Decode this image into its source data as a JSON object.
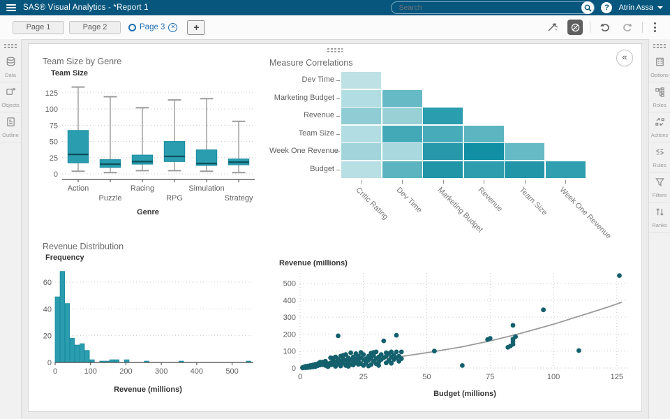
{
  "app": {
    "title": "SAS® Visual Analytics - *Report 1",
    "search_placeholder": "Search",
    "user_name": "Atrin Assa",
    "collapse_glyph": "«"
  },
  "tabs": {
    "pages": [
      {
        "label": "Page 1",
        "active": false
      },
      {
        "label": "Page 2",
        "active": false
      },
      {
        "label": "Page 3",
        "active": true
      }
    ],
    "add_label": "+"
  },
  "left_rail": {
    "items": [
      {
        "label": "Data",
        "icon": "data-icon"
      },
      {
        "label": "Objects",
        "icon": "objects-icon"
      },
      {
        "label": "Outline",
        "icon": "outline-icon"
      }
    ]
  },
  "right_rail": {
    "items": [
      {
        "label": "Options",
        "icon": "options-icon"
      },
      {
        "label": "Roles",
        "icon": "roles-icon"
      },
      {
        "label": "Actions",
        "icon": "actions-icon"
      },
      {
        "label": "Rules",
        "icon": "rules-icon"
      },
      {
        "label": "Filters",
        "icon": "filters-icon"
      },
      {
        "label": "Ranks",
        "icon": "ranks-icon"
      }
    ]
  },
  "colors": {
    "header_bg": "#07567e",
    "accent_blue": "#1f6fb2",
    "teal": "#2a9daf",
    "teal_border": "#1a8c9f",
    "median": "#0d4f5c",
    "scatter_dot": "#14606d",
    "trend_gray": "#9a9a9a",
    "whisker_gray": "#9b9b9b",
    "grid_dotted": "#c9c9c9"
  },
  "chart_data": [
    {
      "id": "boxplot",
      "type": "boxplot",
      "title": "Team Size by Genre",
      "ylabel": "Team Size",
      "xlabel": "Genre",
      "y_ticks": [
        0,
        25,
        50,
        75,
        100,
        125
      ],
      "ylim": [
        0,
        140
      ],
      "categories": [
        "Action",
        "Puzzle",
        "Racing",
        "RPG",
        "Simulation",
        "Strategy"
      ],
      "boxes": [
        {
          "low": 4,
          "q1": 17,
          "median": 30,
          "q3": 67,
          "high": 134
        },
        {
          "low": 2,
          "q1": 10,
          "median": 15,
          "q3": 22,
          "high": 119
        },
        {
          "low": 5,
          "q1": 15,
          "median": 19,
          "q3": 29,
          "high": 102
        },
        {
          "low": 5,
          "q1": 19,
          "median": 27,
          "q3": 50,
          "high": 114
        },
        {
          "low": 4,
          "q1": 13,
          "median": 16,
          "q3": 37,
          "high": 116
        },
        {
          "low": 2,
          "q1": 14,
          "median": 18,
          "q3": 23,
          "high": 81
        }
      ]
    },
    {
      "id": "heatmap",
      "type": "heatmap",
      "title": "Measure Correlations",
      "rows": [
        "Dev Time",
        "Marketing Budget",
        "Revenue",
        "Team Size",
        "Week One Revenue",
        "Budget"
      ],
      "cols": [
        "Critic Rating",
        "Dev Time",
        "Marketing Budget",
        "Revenue",
        "Team Size",
        "Week One Revenue"
      ],
      "cell_colors": [
        [
          "#bde1e5"
        ],
        [
          "#b2dde2",
          "#65bac5"
        ],
        [
          "#90ccd4",
          "#98d0d6",
          "#2a9dae"
        ],
        [
          "#b2dde2",
          "#44a9b7",
          "#48abb9",
          "#5cb5c1"
        ],
        [
          "#a1d5db",
          "#a9d9de",
          "#2798a9",
          "#1190a3",
          "#65bac5"
        ],
        [
          "#b8dfe3",
          "#5cb4c0",
          "#2095a7",
          "#2e9eaf",
          "#2296a8",
          "#30a0b0"
        ]
      ]
    },
    {
      "id": "histogram",
      "type": "histogram",
      "title": "Revenue Distribution",
      "ylabel": "Frequency",
      "xlabel": "Revenue (millions)",
      "y_ticks": [
        0,
        20,
        40,
        60
      ],
      "x_ticks": [
        0,
        100,
        200,
        300,
        400,
        500
      ],
      "ylim": [
        0,
        72
      ],
      "xlim": [
        0,
        560
      ],
      "bin_width": 14,
      "bins": [
        [
          0,
          49
        ],
        [
          14,
          68
        ],
        [
          28,
          44
        ],
        [
          42,
          18
        ],
        [
          56,
          13
        ],
        [
          70,
          14
        ],
        [
          84,
          9
        ],
        [
          98,
          2
        ],
        [
          126,
          1
        ],
        [
          140,
          1
        ],
        [
          154,
          2
        ],
        [
          168,
          2
        ],
        [
          196,
          2
        ],
        [
          252,
          1
        ],
        [
          350,
          1
        ],
        [
          540,
          1
        ]
      ]
    },
    {
      "id": "scatter",
      "type": "scatter",
      "title": "",
      "ylabel": "Revenue (millions)",
      "xlabel": "Budget (millions)",
      "x_ticks": [
        0,
        25,
        50,
        75,
        100,
        125
      ],
      "y_ticks": [
        0,
        100,
        200,
        300,
        400,
        500
      ],
      "xlim": [
        0,
        130
      ],
      "ylim": [
        0,
        560
      ],
      "trend": [
        [
          0,
          5
        ],
        [
          10,
          15
        ],
        [
          20,
          30
        ],
        [
          30,
          48
        ],
        [
          40,
          68
        ],
        [
          53,
          97
        ],
        [
          64,
          125
        ],
        [
          75,
          160
        ],
        [
          85,
          196
        ],
        [
          100,
          258
        ],
        [
          110,
          305
        ],
        [
          120,
          352
        ],
        [
          127,
          388
        ]
      ],
      "points": [
        [
          1,
          3
        ],
        [
          1,
          1
        ],
        [
          1.5,
          6
        ],
        [
          2,
          4
        ],
        [
          2,
          10
        ],
        [
          2,
          2
        ],
        [
          2.5,
          7
        ],
        [
          2.5,
          3
        ],
        [
          3,
          5
        ],
        [
          3,
          12
        ],
        [
          3,
          3
        ],
        [
          3.5,
          9
        ],
        [
          3.5,
          5
        ],
        [
          4,
          8
        ],
        [
          4,
          15
        ],
        [
          4,
          4
        ],
        [
          4.5,
          12
        ],
        [
          4.5,
          7
        ],
        [
          5,
          10
        ],
        [
          5,
          18
        ],
        [
          5,
          6
        ],
        [
          5.5,
          14
        ],
        [
          5.5,
          9
        ],
        [
          6,
          12
        ],
        [
          6,
          22
        ],
        [
          6,
          8
        ],
        [
          6.5,
          16
        ],
        [
          7,
          14
        ],
        [
          7,
          25
        ],
        [
          7.5,
          30
        ],
        [
          7.5,
          20
        ],
        [
          8,
          18
        ],
        [
          8,
          35
        ],
        [
          8,
          28
        ],
        [
          9,
          20
        ],
        [
          9,
          35
        ],
        [
          10,
          15
        ],
        [
          10,
          40
        ],
        [
          10,
          28
        ],
        [
          11,
          25
        ],
        [
          11,
          8
        ],
        [
          12,
          30
        ],
        [
          12,
          60
        ],
        [
          12,
          18
        ],
        [
          13,
          20
        ],
        [
          13,
          45
        ],
        [
          13,
          58
        ],
        [
          14,
          35
        ],
        [
          14,
          10
        ],
        [
          14,
          65
        ],
        [
          15,
          50
        ],
        [
          15,
          190
        ],
        [
          15,
          25
        ],
        [
          16,
          40
        ],
        [
          16,
          70
        ],
        [
          16,
          12
        ],
        [
          17,
          30
        ],
        [
          17,
          55
        ],
        [
          17,
          75
        ],
        [
          18,
          45
        ],
        [
          18,
          80
        ],
        [
          18,
          15
        ],
        [
          19,
          35
        ],
        [
          19,
          60
        ],
        [
          19,
          10
        ],
        [
          20,
          50
        ],
        [
          20,
          90
        ],
        [
          20,
          20
        ],
        [
          21,
          40
        ],
        [
          21,
          65
        ],
        [
          21,
          18
        ],
        [
          22,
          55
        ],
        [
          22,
          30
        ],
        [
          22,
          85
        ],
        [
          23,
          70
        ],
        [
          23,
          45
        ],
        [
          23,
          22
        ],
        [
          24,
          60
        ],
        [
          24,
          25
        ],
        [
          24,
          92
        ],
        [
          25,
          80
        ],
        [
          25,
          50
        ],
        [
          25,
          15
        ],
        [
          26,
          55
        ],
        [
          26,
          30
        ],
        [
          27,
          70
        ],
        [
          27,
          45
        ],
        [
          27,
          12
        ],
        [
          28,
          60
        ],
        [
          28,
          20
        ],
        [
          28,
          88
        ],
        [
          29,
          75
        ],
        [
          29,
          40
        ],
        [
          29,
          92
        ],
        [
          30,
          95
        ],
        [
          30,
          55
        ],
        [
          30,
          25
        ],
        [
          31,
          65
        ],
        [
          31,
          35
        ],
        [
          31,
          15
        ],
        [
          32,
          80
        ],
        [
          32,
          50
        ],
        [
          33,
          160
        ],
        [
          33,
          60
        ],
        [
          34,
          70
        ],
        [
          34,
          30
        ],
        [
          34,
          90
        ],
        [
          35,
          85
        ],
        [
          35,
          45
        ],
        [
          36,
          65
        ],
        [
          36,
          95
        ],
        [
          36,
          28
        ],
        [
          37,
          50
        ],
        [
          37,
          75
        ],
        [
          38,
          193
        ],
        [
          38,
          60
        ],
        [
          38,
          95
        ],
        [
          39,
          70
        ],
        [
          39,
          40
        ],
        [
          40,
          55
        ],
        [
          40,
          95
        ],
        [
          53,
          100
        ],
        [
          64,
          15
        ],
        [
          74,
          168
        ],
        [
          75,
          175
        ],
        [
          82,
          122
        ],
        [
          83,
          130
        ],
        [
          84,
          140
        ],
        [
          84,
          155
        ],
        [
          84,
          170
        ],
        [
          85,
          185
        ],
        [
          84,
          252
        ],
        [
          96,
          343
        ],
        [
          110,
          103
        ],
        [
          126,
          545
        ]
      ]
    }
  ]
}
